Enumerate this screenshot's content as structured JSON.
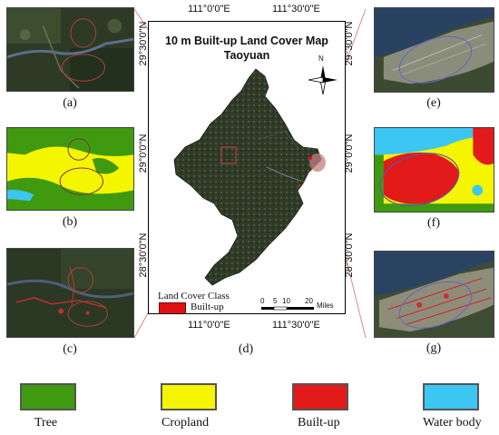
{
  "map": {
    "title_line1": "10 m Built-up Land Cover Map",
    "title_line2": "Taoyuan",
    "north_label": "N",
    "top_longitudes": [
      "111°0'0\"E",
      "111°30'0\"E"
    ],
    "bottom_longitudes": [
      "111°0'0\"E",
      "111°30'0\"E"
    ],
    "left_latitudes": [
      "29°30'0\"N",
      "29°0'0\"N",
      "28°30'0\"N"
    ],
    "right_latitudes": [
      "29°30'0\"N",
      "29°0'0\"N",
      "28°30'0\"N"
    ],
    "inset_legend": {
      "heading": "Land Cover Class",
      "class_label": "Built-up",
      "class_color": "#e01010"
    },
    "scale_bar": {
      "ticks": [
        "0",
        "5",
        "10",
        "20"
      ],
      "unit": "Miles"
    },
    "caption": "(d)"
  },
  "panels": {
    "a": "(a)",
    "b": "(b)",
    "c": "(c)",
    "e": "(e)",
    "f": "(f)",
    "g": "(g)"
  },
  "legend": [
    {
      "label": "Tree",
      "color": "#3f9a10"
    },
    {
      "label": "Cropland",
      "color": "#f5f500"
    },
    {
      "label": "Built-up",
      "color": "#e21a1a"
    },
    {
      "label": "Water body",
      "color": "#3cc6f2"
    }
  ],
  "colors": {
    "tree": "#3f9a10",
    "cropland": "#f5f500",
    "builtup": "#e21a1a",
    "water": "#3cc6f2",
    "connector": "#d77a7a"
  }
}
